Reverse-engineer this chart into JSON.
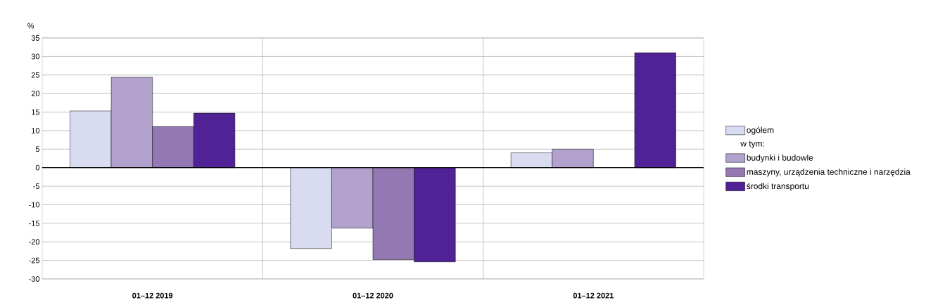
{
  "chart_data": {
    "type": "bar",
    "ylabel": "%",
    "categories": [
      "01–12 2019",
      "01–12 2020",
      "01–12 2021"
    ],
    "series": [
      {
        "name": "ogółem",
        "color": "#d9dbf0",
        "values": [
          15.3,
          -21.8,
          4.0
        ]
      },
      {
        "name": "budynki i budowle",
        "color": "#b3a1cd",
        "values": [
          24.4,
          -16.3,
          5.0
        ]
      },
      {
        "name": "maszyny, urządzenia techniczne i narzędzia",
        "color": "#9478b3",
        "values": [
          11.1,
          -24.8,
          null
        ]
      },
      {
        "name": "środki transportu",
        "color": "#512296",
        "values": [
          14.7,
          -25.4,
          31.0
        ]
      }
    ],
    "annotations": [
      "w tym:"
    ],
    "ylim": [
      -30,
      35
    ],
    "yticks": [
      -30,
      -25,
      -20,
      -15,
      -10,
      -5,
      0,
      5,
      10,
      15,
      20,
      25,
      30,
      35
    ],
    "grid": true,
    "legend": "right"
  }
}
